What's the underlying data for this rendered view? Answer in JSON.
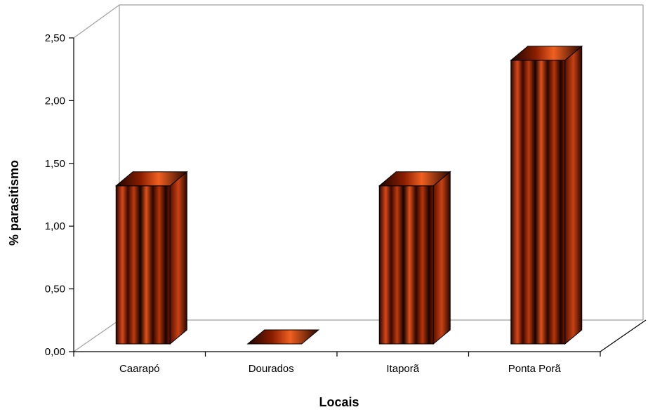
{
  "chart_data": {
    "type": "bar",
    "style": "3d-cylinder",
    "categories": [
      "Caarapó",
      "Dourados",
      "Itaporã",
      "Ponta Porã"
    ],
    "values": [
      1.26,
      0.0,
      1.26,
      2.26
    ],
    "y_tick_labels": [
      "0,00",
      "0,50",
      "1,00",
      "1,50",
      "2,00",
      "2,50"
    ],
    "y_ticks": [
      0,
      0.5,
      1.0,
      1.5,
      2.0,
      2.5
    ],
    "ylim": [
      0,
      2.5
    ],
    "xlabel": "Locais",
    "ylabel": "% parasitismo",
    "grid": false,
    "legend": "none",
    "colors": {
      "bar_dark": "#1a0400",
      "bar_mid": "#8a1e00",
      "bar_light": "#e0501a",
      "frame": "#000000",
      "walls": "#a0a0a0"
    }
  }
}
